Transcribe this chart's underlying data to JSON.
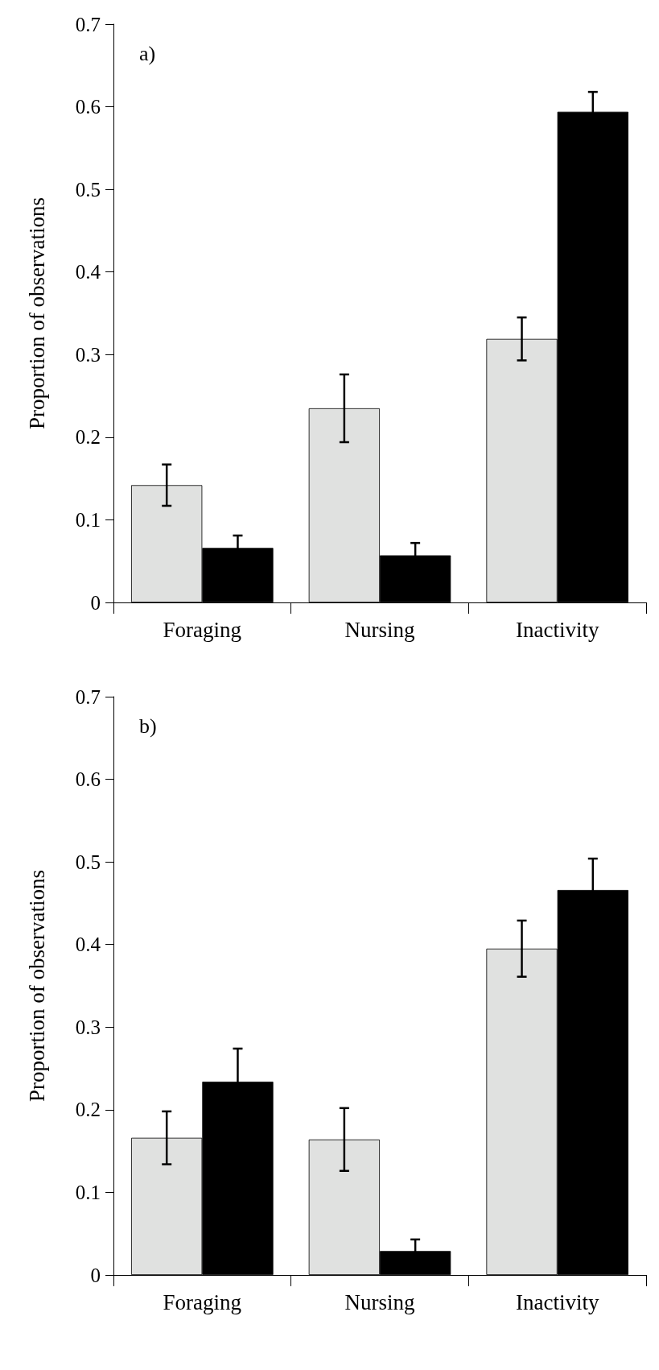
{
  "chart_data": [
    {
      "type": "bar",
      "title": "a)",
      "ylabel": "Proportion of observations",
      "categories": [
        "Foraging",
        "Nursing",
        "Inactivity"
      ],
      "series": [
        {
          "color": "#e0e1e0",
          "values": [
            0.142,
            0.235,
            0.319
          ],
          "errors": [
            0.025,
            0.041,
            0.026
          ]
        },
        {
          "color": "#000000",
          "values": [
            0.066,
            0.057,
            0.594
          ],
          "errors": [
            0.015,
            0.015,
            0.024
          ]
        }
      ],
      "ylim": [
        0,
        0.7
      ],
      "yticks": [
        0,
        0.1,
        0.2,
        0.3,
        0.4,
        0.5,
        0.6,
        0.7
      ],
      "grid": false
    },
    {
      "type": "bar",
      "title": "b)",
      "ylabel": "Proportion of observations",
      "categories": [
        "Foraging",
        "Nursing",
        "Inactivity"
      ],
      "series": [
        {
          "color": "#e0e1e0",
          "values": [
            0.166,
            0.164,
            0.395
          ],
          "errors": [
            0.032,
            0.038,
            0.034
          ]
        },
        {
          "color": "#000000",
          "values": [
            0.234,
            0.029,
            0.466
          ],
          "errors": [
            0.04,
            0.014,
            0.038
          ]
        }
      ],
      "ylim": [
        0,
        0.7
      ],
      "yticks": [
        0,
        0.1,
        0.2,
        0.3,
        0.4,
        0.5,
        0.6,
        0.7
      ],
      "grid": false
    }
  ]
}
